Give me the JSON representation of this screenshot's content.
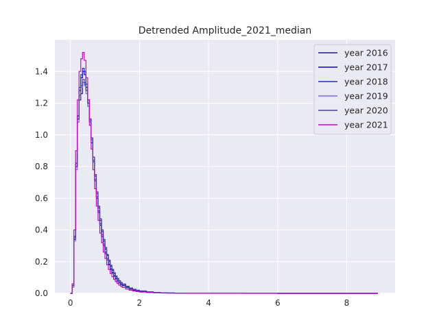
{
  "chart_data": {
    "type": "histogram-step",
    "title": "Detrended Amplitude_2021_median",
    "xlabel": "",
    "ylabel": "",
    "xlim": [
      -0.45,
      9.4
    ],
    "ylim": [
      0,
      1.6
    ],
    "xticks": [
      0,
      2,
      4,
      6,
      8
    ],
    "xtick_labels": [
      "0",
      "2",
      "4",
      "6",
      "8"
    ],
    "yticks": [
      0.0,
      0.2,
      0.4,
      0.6,
      0.8,
      1.0,
      1.2,
      1.4
    ],
    "ytick_labels": [
      "0.0",
      "0.2",
      "0.4",
      "0.6",
      "0.8",
      "1.0",
      "1.2",
      "1.4"
    ],
    "grid": true,
    "legend_position": "top-right",
    "x": [
      0.0,
      0.05,
      0.1,
      0.15,
      0.2,
      0.25,
      0.3,
      0.35,
      0.4,
      0.45,
      0.5,
      0.55,
      0.6,
      0.65,
      0.7,
      0.75,
      0.8,
      0.85,
      0.9,
      0.95,
      1.0,
      1.05,
      1.1,
      1.15,
      1.2,
      1.25,
      1.3,
      1.35,
      1.4,
      1.45,
      1.5,
      1.6,
      1.7,
      1.8,
      1.9,
      2.0,
      2.2,
      2.4,
      2.6,
      2.8,
      3.0,
      3.5,
      4.0,
      5.0,
      6.0,
      7.0,
      8.0,
      8.9
    ],
    "series": [
      {
        "name": "year 2016",
        "color": "#1a1a8c",
        "values": [
          0.0,
          0.05,
          0.35,
          0.82,
          1.12,
          1.22,
          1.26,
          1.33,
          1.32,
          1.28,
          1.22,
          1.1,
          0.98,
          0.86,
          0.74,
          0.63,
          0.54,
          0.46,
          0.39,
          0.33,
          0.28,
          0.24,
          0.2,
          0.17,
          0.145,
          0.125,
          0.105,
          0.09,
          0.077,
          0.066,
          0.056,
          0.042,
          0.032,
          0.024,
          0.018,
          0.014,
          0.009,
          0.006,
          0.004,
          0.003,
          0.002,
          0.001,
          0.0006,
          0.0003,
          0.0001,
          0.0,
          0.0,
          0.0
        ]
      },
      {
        "name": "year 2017",
        "color": "#0000cd",
        "values": [
          0.0,
          0.04,
          0.34,
          0.8,
          1.1,
          1.28,
          1.36,
          1.4,
          1.38,
          1.3,
          1.2,
          1.08,
          0.95,
          0.83,
          0.71,
          0.6,
          0.51,
          0.43,
          0.36,
          0.3,
          0.25,
          0.21,
          0.18,
          0.15,
          0.128,
          0.108,
          0.092,
          0.078,
          0.066,
          0.056,
          0.048,
          0.036,
          0.027,
          0.02,
          0.015,
          0.011,
          0.007,
          0.005,
          0.003,
          0.002,
          0.0015,
          0.0008,
          0.0004,
          0.0002,
          0.0001,
          0.0,
          0.0,
          0.0
        ]
      },
      {
        "name": "year 2018",
        "color": "#1e2ecc",
        "values": [
          0.0,
          0.05,
          0.36,
          0.82,
          1.12,
          1.3,
          1.38,
          1.42,
          1.4,
          1.32,
          1.22,
          1.1,
          0.97,
          0.84,
          0.72,
          0.61,
          0.52,
          0.44,
          0.37,
          0.31,
          0.26,
          0.22,
          0.185,
          0.155,
          0.132,
          0.112,
          0.095,
          0.08,
          0.068,
          0.058,
          0.05,
          0.037,
          0.028,
          0.021,
          0.016,
          0.012,
          0.008,
          0.005,
          0.003,
          0.002,
          0.0015,
          0.0008,
          0.0004,
          0.0002,
          0.0001,
          0.0,
          0.0,
          0.0
        ]
      },
      {
        "name": "year 2019",
        "color": "#7b68ee",
        "values": [
          0.0,
          0.04,
          0.33,
          0.78,
          1.08,
          1.24,
          1.3,
          1.33,
          1.31,
          1.26,
          1.18,
          1.08,
          0.97,
          0.86,
          0.75,
          0.64,
          0.55,
          0.47,
          0.4,
          0.34,
          0.29,
          0.245,
          0.205,
          0.175,
          0.15,
          0.128,
          0.108,
          0.092,
          0.079,
          0.068,
          0.058,
          0.044,
          0.033,
          0.025,
          0.019,
          0.015,
          0.01,
          0.006,
          0.004,
          0.003,
          0.002,
          0.001,
          0.0006,
          0.0003,
          0.0001,
          0.0,
          0.0,
          0.0
        ]
      },
      {
        "name": "year 2020",
        "color": "#483d8b",
        "values": [
          0.0,
          0.05,
          0.35,
          0.8,
          1.1,
          1.25,
          1.31,
          1.35,
          1.33,
          1.28,
          1.2,
          1.09,
          0.98,
          0.86,
          0.75,
          0.64,
          0.55,
          0.47,
          0.4,
          0.34,
          0.29,
          0.245,
          0.21,
          0.178,
          0.152,
          0.13,
          0.11,
          0.094,
          0.08,
          0.069,
          0.059,
          0.045,
          0.034,
          0.026,
          0.02,
          0.015,
          0.01,
          0.006,
          0.004,
          0.003,
          0.002,
          0.001,
          0.0006,
          0.0003,
          0.0001,
          0.0,
          0.0,
          0.0
        ]
      },
      {
        "name": "year 2021",
        "color": "#cc00cc",
        "values": [
          0.0,
          0.06,
          0.4,
          0.9,
          1.22,
          1.4,
          1.48,
          1.52,
          1.47,
          1.36,
          1.22,
          1.06,
          0.91,
          0.78,
          0.66,
          0.55,
          0.46,
          0.38,
          0.32,
          0.26,
          0.22,
          0.18,
          0.15,
          0.125,
          0.105,
          0.088,
          0.074,
          0.062,
          0.052,
          0.044,
          0.037,
          0.027,
          0.02,
          0.015,
          0.011,
          0.008,
          0.005,
          0.003,
          0.002,
          0.0013,
          0.0009,
          0.0004,
          0.0002,
          0.0001,
          0.0,
          0.0,
          0.0,
          0.0
        ]
      }
    ]
  }
}
